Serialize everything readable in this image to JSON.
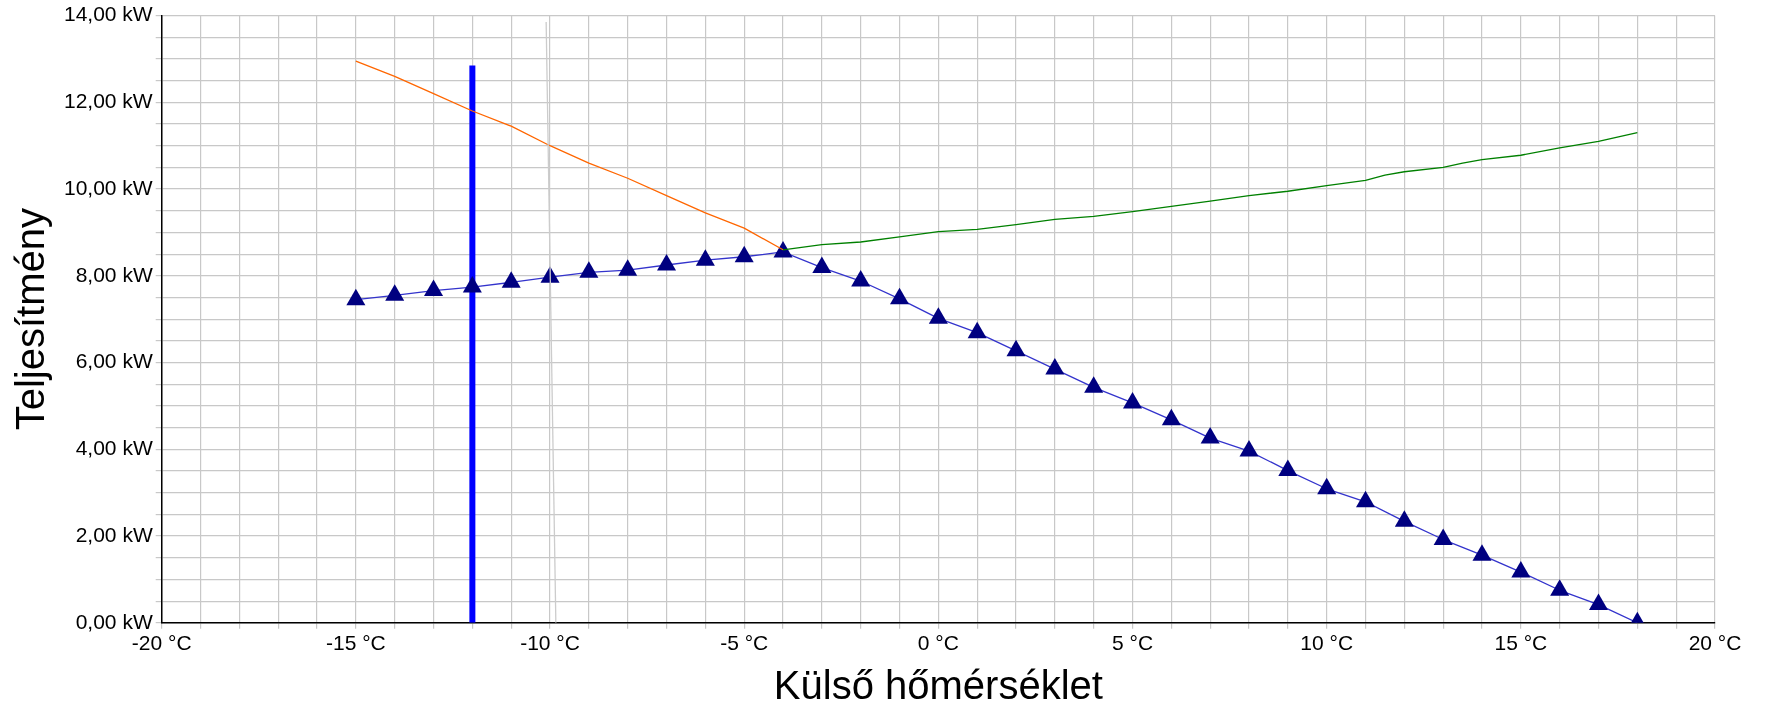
{
  "chart_data": {
    "type": "line",
    "xlabel": "Külső hőmérséklet",
    "ylabel": "Teljesítmény",
    "xlim": [
      -20,
      20
    ],
    "xticks": [
      {
        "value": -20,
        "label": "-20 °C"
      },
      {
        "value": -19,
        "label": null
      },
      {
        "value": -18,
        "label": null
      },
      {
        "value": -17,
        "label": null
      },
      {
        "value": -16,
        "label": null
      },
      {
        "value": -15,
        "label": "-15 °C"
      },
      {
        "value": -14,
        "label": null
      },
      {
        "value": -13,
        "label": null
      },
      {
        "value": -12,
        "label": null
      },
      {
        "value": -11,
        "label": null
      },
      {
        "value": -10,
        "label": "-10 °C"
      },
      {
        "value": -9,
        "label": null
      },
      {
        "value": -8,
        "label": null
      },
      {
        "value": -7,
        "label": null
      },
      {
        "value": -6,
        "label": null
      },
      {
        "value": -5,
        "label": "-5 °C"
      },
      {
        "value": -4,
        "label": null
      },
      {
        "value": -3,
        "label": null
      },
      {
        "value": -2,
        "label": null
      },
      {
        "value": -1,
        "label": null
      },
      {
        "value": 0,
        "label": "0 °C"
      },
      {
        "value": 1,
        "label": null
      },
      {
        "value": 2,
        "label": null
      },
      {
        "value": 3,
        "label": null
      },
      {
        "value": 4,
        "label": null
      },
      {
        "value": 5,
        "label": "5 °C"
      },
      {
        "value": 6,
        "label": null
      },
      {
        "value": 7,
        "label": null
      },
      {
        "value": 8,
        "label": null
      },
      {
        "value": 9,
        "label": null
      },
      {
        "value": 10,
        "label": "10 °C"
      },
      {
        "value": 11,
        "label": null
      },
      {
        "value": 12,
        "label": null
      },
      {
        "value": 13,
        "label": null
      },
      {
        "value": 14,
        "label": null
      },
      {
        "value": 15,
        "label": "15 °C"
      },
      {
        "value": 16,
        "label": null
      },
      {
        "value": 17,
        "label": null
      },
      {
        "value": 18,
        "label": null
      },
      {
        "value": 19,
        "label": null
      },
      {
        "value": 20,
        "label": "20 °C"
      }
    ],
    "ylim": [
      0,
      14
    ],
    "yticks": [
      {
        "value": 0,
        "label": "0,00 kW"
      },
      {
        "value": 0.5,
        "label": null
      },
      {
        "value": 1,
        "label": null
      },
      {
        "value": 1.5,
        "label": null
      },
      {
        "value": 2,
        "label": "2,00 kW"
      },
      {
        "value": 2.5,
        "label": null
      },
      {
        "value": 3,
        "label": null
      },
      {
        "value": 3.5,
        "label": null
      },
      {
        "value": 4,
        "label": "4,00 kW"
      },
      {
        "value": 4.5,
        "label": null
      },
      {
        "value": 5,
        "label": null
      },
      {
        "value": 5.5,
        "label": null
      },
      {
        "value": 6,
        "label": "6,00 kW"
      },
      {
        "value": 6.5,
        "label": null
      },
      {
        "value": 7,
        "label": null
      },
      {
        "value": 7.5,
        "label": null
      },
      {
        "value": 8,
        "label": "8,00 kW"
      },
      {
        "value": 8.5,
        "label": null
      },
      {
        "value": 9,
        "label": null
      },
      {
        "value": 9.5,
        "label": null
      },
      {
        "value": 10,
        "label": "10,00 kW"
      },
      {
        "value": 10.5,
        "label": null
      },
      {
        "value": 11,
        "label": null
      },
      {
        "value": 11.5,
        "label": null
      },
      {
        "value": 12,
        "label": "12,00 kW"
      },
      {
        "value": 12.5,
        "label": null
      },
      {
        "value": 13,
        "label": null
      },
      {
        "value": 13.5,
        "label": null
      },
      {
        "value": 14,
        "label": "14,00 kW"
      }
    ],
    "grid": true,
    "marker": "triangle",
    "line_style": "solid",
    "series": [
      {
        "color": "#cccccc",
        "marker": "none",
        "x": [
          -10.1,
          -9.85
        ],
        "values": [
          13.85,
          0
        ]
      },
      {
        "color": "#ff6600",
        "marker": "none",
        "x": [
          -15,
          -14,
          -13,
          -12,
          -11,
          -10,
          -9,
          -8,
          -7,
          -6,
          -5,
          -4
        ],
        "values": [
          12.95,
          12.6,
          12.2,
          11.8,
          11.45,
          11.0,
          10.6,
          10.25,
          9.85,
          9.45,
          9.1,
          8.6
        ]
      },
      {
        "color": "#008000",
        "marker": "none",
        "x": [
          -4,
          -3,
          -2,
          -1,
          0,
          1,
          2,
          3,
          4,
          5,
          6,
          7,
          8,
          9,
          10,
          11,
          11.5,
          12,
          13,
          13.5,
          14,
          15,
          16,
          17,
          18
        ],
        "values": [
          8.6,
          8.72,
          8.78,
          8.9,
          9.02,
          9.07,
          9.18,
          9.3,
          9.37,
          9.48,
          9.6,
          9.72,
          9.85,
          9.95,
          10.08,
          10.2,
          10.32,
          10.4,
          10.5,
          10.6,
          10.68,
          10.78,
          10.95,
          11.1,
          11.3
        ]
      },
      {
        "color": "#3333cc",
        "x": [
          -15,
          -14,
          -13,
          -12,
          -11,
          -10,
          -9,
          -8,
          -7,
          -6,
          -5,
          -4,
          -3,
          -2,
          -1,
          0,
          1,
          2,
          3,
          4,
          5,
          6,
          7,
          8,
          9,
          10,
          11,
          12,
          13,
          14,
          15,
          16,
          17,
          18
        ],
        "values": [
          7.45,
          7.55,
          7.66,
          7.74,
          7.85,
          7.97,
          8.08,
          8.13,
          8.25,
          8.36,
          8.44,
          8.55,
          8.19,
          7.88,
          7.47,
          7.02,
          6.69,
          6.27,
          5.85,
          5.43,
          5.07,
          4.68,
          4.26,
          3.96,
          3.51,
          3.09,
          2.79,
          2.34,
          1.92,
          1.56,
          1.17,
          0.75,
          0.42,
          0
        ]
      },
      {
        "color": "#0000ff",
        "marker": "none",
        "x": [
          -12,
          -12
        ],
        "values": [
          0,
          12.85
        ]
      }
    ]
  }
}
